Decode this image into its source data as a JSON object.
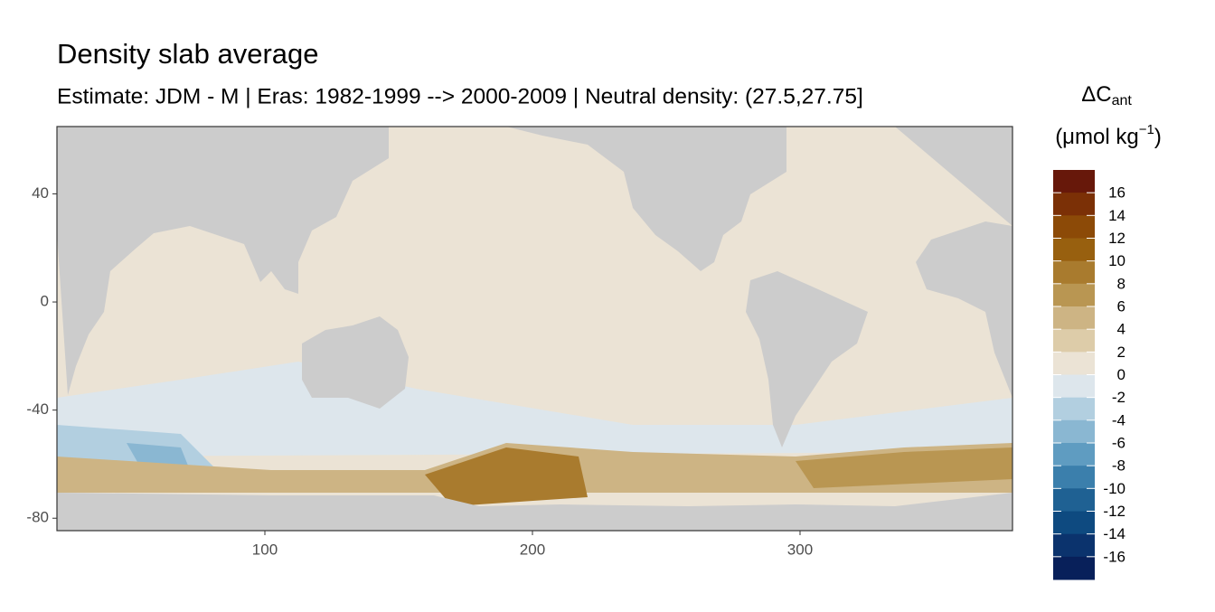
{
  "chart_data": {
    "type": "raster-map",
    "title": "Density slab average",
    "subtitle": "Estimate: JDM - M | Eras: 1982-1999 --> 2000-2009 | Neutral density: (27.5,27.75]",
    "legend_title": [
      "ΔC",
      "ant"
    ],
    "legend_unit": [
      "(μmol kg",
      "−1",
      ")"
    ],
    "xlim": [
      22.3,
      379.4
    ],
    "xticks": [
      100,
      200,
      300
    ],
    "ylim": [
      -84.6,
      64.9
    ],
    "yticks": [
      40,
      0,
      -40,
      -80
    ],
    "legend_limits": [
      18,
      -18
    ],
    "legend_breaks": [
      16,
      14,
      12,
      10,
      8,
      6,
      4,
      2,
      0,
      -2,
      -4,
      -6,
      -8,
      -10,
      -12,
      -14,
      -16
    ],
    "legend_colors": [
      "#67180a",
      "#7b3006",
      "#8c4a07",
      "#98600f",
      "#a97b2e",
      "#b99652",
      "#cdb484",
      "#ddcca9",
      "#ebe3d5",
      "#dde6ec",
      "#b2cfe0",
      "#8ab7d2",
      "#5f9cc1",
      "#3b7fac",
      "#1f6193",
      "#0e4a80",
      "#0b336d",
      "#08205a"
    ]
  }
}
